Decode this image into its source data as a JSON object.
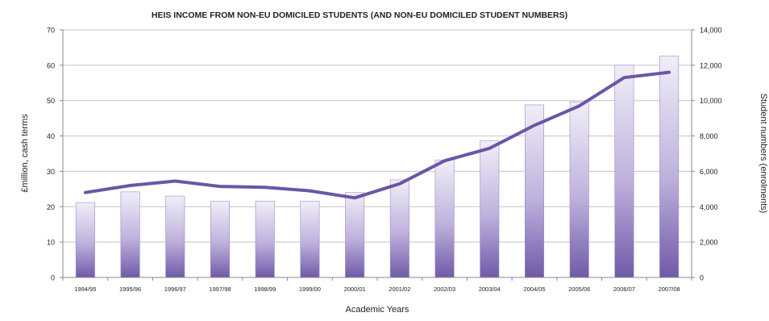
{
  "chart_data": {
    "type": "bar",
    "title": "HEIS INCOME FROM NON-EU DOMICILED STUDENTS (AND NON-EU DOMICILED STUDENT NUMBERS)",
    "xlabel": "Academic Years",
    "ylabel": "£million, cash terms",
    "y2label": "Student numbers (enrolments)",
    "ylim": [
      0,
      70
    ],
    "y_ticks": [
      0,
      10,
      20,
      30,
      40,
      50,
      60,
      70
    ],
    "y_tick_labels": [
      "0",
      "10",
      "20",
      "30",
      "40",
      "50",
      "60",
      "70"
    ],
    "y2lim": [
      0,
      14000
    ],
    "y2_ticks": [
      0,
      2000,
      4000,
      6000,
      8000,
      10000,
      12000,
      14000
    ],
    "y2_tick_labels": [
      "0",
      "2,000",
      "4,000",
      "6,000",
      "8,000",
      "10,000",
      "12,000",
      "14,000"
    ],
    "grid": true,
    "categories": [
      "1994/95",
      "1995/96",
      "1996/97",
      "1997/98",
      "1998/99",
      "1999/00",
      "2000/01",
      "2001/02",
      "2002/03",
      "2003/04",
      "2004/05",
      "2005/06",
      "2006/07",
      "2007/08"
    ],
    "series": [
      {
        "type": "bar",
        "axis": "left",
        "values": [
          21.2,
          24.2,
          23.0,
          21.5,
          21.6,
          21.6,
          24.0,
          27.6,
          33.2,
          38.6,
          48.8,
          49.6,
          60.0,
          62.6
        ]
      },
      {
        "type": "line",
        "axis": "right",
        "values": [
          4800,
          5200,
          5450,
          5150,
          5100,
          4900,
          4500,
          5300,
          6600,
          7300,
          8600,
          9700,
          11300,
          11600
        ]
      }
    ],
    "colors": {
      "bar_light": "#f1eef8",
      "bar_mid": "#bdb1dc",
      "bar_dark": "#6f5aa8",
      "line": "#6a56a6",
      "grid": "#c4c4c4",
      "axis": "#8a8a8a",
      "text": "#222222"
    }
  }
}
